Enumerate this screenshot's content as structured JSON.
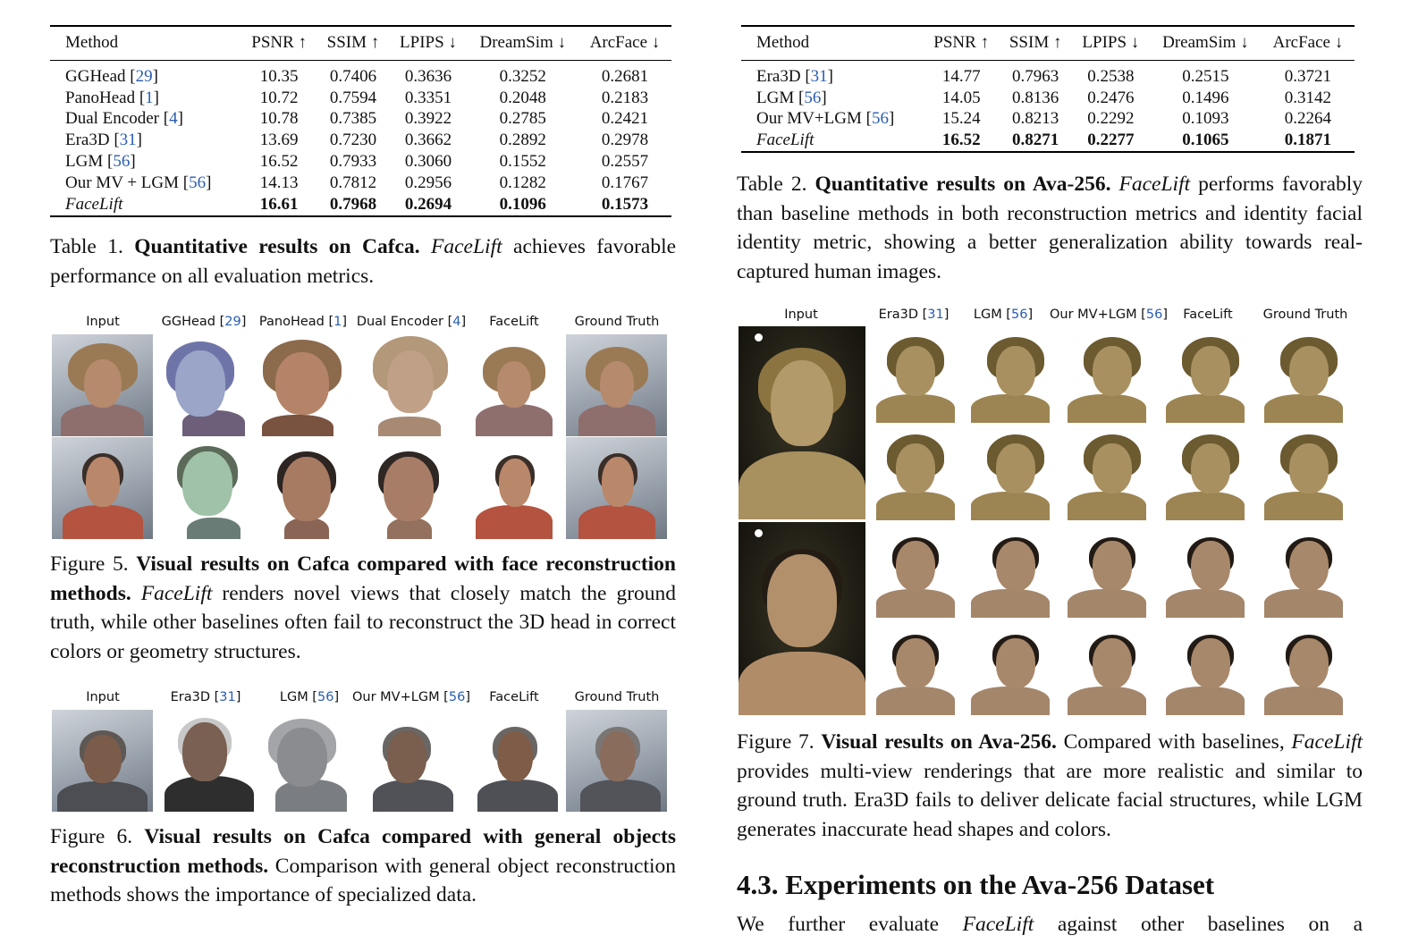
{
  "table1": {
    "headers": [
      "Method",
      "PSNR ↑",
      "SSIM ↑",
      "LPIPS ↓",
      "DreamSim ↓",
      "ArcFace ↓"
    ],
    "rows": [
      {
        "method": "GGHead",
        "ref": "29",
        "values": [
          "10.35",
          "0.7406",
          "0.3636",
          "0.3252",
          "0.2681"
        ]
      },
      {
        "method": "PanoHead",
        "ref": "1",
        "values": [
          "10.72",
          "0.7594",
          "0.3351",
          "0.2048",
          "0.2183"
        ]
      },
      {
        "method": "Dual Encoder",
        "ref": "4",
        "values": [
          "10.78",
          "0.7385",
          "0.3922",
          "0.2785",
          "0.2421"
        ]
      },
      {
        "method": "Era3D",
        "ref": "31",
        "values": [
          "13.69",
          "0.7230",
          "0.3662",
          "0.2892",
          "0.2978"
        ]
      },
      {
        "method": "LGM",
        "ref": "56",
        "values": [
          "16.52",
          "0.7933",
          "0.3060",
          "0.1552",
          "0.2557"
        ]
      },
      {
        "method": "Our MV + LGM",
        "ref": "56",
        "values": [
          "14.13",
          "0.7812",
          "0.2956",
          "0.1282",
          "0.1767"
        ]
      },
      {
        "method": "FaceLift",
        "ref": "",
        "values": [
          "16.61",
          "0.7968",
          "0.2694",
          "0.1096",
          "0.1573"
        ]
      }
    ],
    "caption": {
      "label": "Table 1.",
      "bold": "Quantitative results on Cafca.",
      "italic": "FaceLift",
      "rest": "achieves favorable performance on all evaluation metrics."
    }
  },
  "table2": {
    "headers": [
      "Method",
      "PSNR ↑",
      "SSIM ↑",
      "LPIPS ↓",
      "DreamSim ↓",
      "ArcFace ↓"
    ],
    "rows": [
      {
        "method": "Era3D",
        "ref": "31",
        "values": [
          "14.77",
          "0.7963",
          "0.2538",
          "0.2515",
          "0.3721"
        ]
      },
      {
        "method": "LGM",
        "ref": "56",
        "values": [
          "14.05",
          "0.8136",
          "0.2476",
          "0.1496",
          "0.3142"
        ]
      },
      {
        "method": "Our MV+LGM",
        "ref": "56",
        "values": [
          "15.24",
          "0.8213",
          "0.2292",
          "0.1093",
          "0.2264"
        ]
      },
      {
        "method": "FaceLift",
        "ref": "",
        "values": [
          "16.52",
          "0.8271",
          "0.2277",
          "0.1065",
          "0.1871"
        ]
      }
    ],
    "caption": {
      "label": "Table 2.",
      "bold": "Quantitative results on Ava-256.",
      "italic": "FaceLift",
      "rest": "performs favorably than baseline methods in both reconstruction metrics and identity facial identity metric, showing a better generalization ability towards real-captured human images."
    }
  },
  "figure5": {
    "columns": [
      {
        "label": "Input",
        "ref": ""
      },
      {
        "label": "GGHead",
        "ref": "29"
      },
      {
        "label": "PanoHead",
        "ref": "1"
      },
      {
        "label": "Dual Encoder",
        "ref": "4"
      },
      {
        "label": "FaceLift",
        "ref": ""
      },
      {
        "label": "Ground Truth",
        "ref": ""
      }
    ],
    "caption": {
      "label": "Figure 5.",
      "bold": "Visual results on Cafca compared with face reconstruction methods.",
      "italic": "FaceLift",
      "rest": "renders novel views that closely match the ground truth, while other baselines often fail to reconstruct the 3D head in correct colors or geometry structures."
    }
  },
  "figure6": {
    "columns": [
      {
        "label": "Input",
        "ref": ""
      },
      {
        "label": "Era3D",
        "ref": "31"
      },
      {
        "label": "LGM",
        "ref": "56"
      },
      {
        "label": "Our MV+LGM",
        "ref": "56"
      },
      {
        "label": "FaceLift",
        "ref": ""
      },
      {
        "label": "Ground Truth",
        "ref": ""
      }
    ],
    "caption": {
      "label": "Figure 6.",
      "bold": "Visual results on Cafca compared with general objects reconstruction methods.",
      "rest": "Comparison with general object reconstruction methods shows the importance of specialized data."
    }
  },
  "figure7": {
    "columns": [
      {
        "label": "Input",
        "ref": ""
      },
      {
        "label": "Era3D",
        "ref": "31"
      },
      {
        "label": "LGM",
        "ref": "56"
      },
      {
        "label": "Our MV+LGM",
        "ref": "56"
      },
      {
        "label": "FaceLift",
        "ref": ""
      },
      {
        "label": "Ground Truth",
        "ref": ""
      }
    ],
    "caption": {
      "label": "Figure 7.",
      "bold": "Visual results on Ava-256.",
      "pre": "Compared with baselines,",
      "italic": "FaceLift",
      "rest": "provides multi-view renderings that are more realistic and similar to ground truth. Era3D fails to deliver delicate facial structures, while LGM generates inaccurate head shapes and colors."
    }
  },
  "section": {
    "title": "4.3. Experiments on the Ava-256 Dataset",
    "para_pre": "We further evaluate",
    "para_italic": "FaceLift",
    "para_post": "against other baselines on a"
  }
}
